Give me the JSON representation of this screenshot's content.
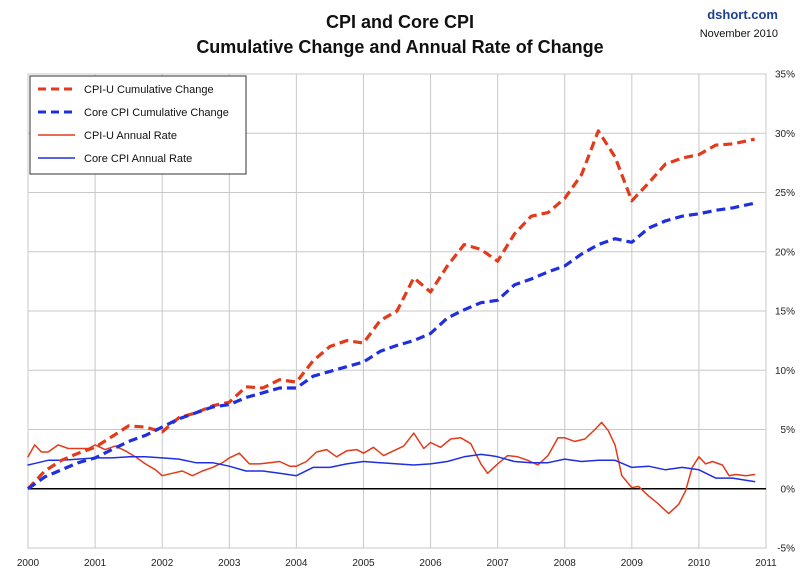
{
  "header": {
    "title_line1": "CPI and Core CPI",
    "title_line2": "Cumulative Change and Annual Rate of Change",
    "source": "dshort.com",
    "date": "November 2010"
  },
  "colors": {
    "cpi_red": "#e23a1a",
    "core_blue": "#1f2fe0",
    "zero_line": "#000000",
    "grid": "#c8c8c8",
    "frame": "#808080"
  },
  "chart_data": {
    "type": "line",
    "title": "CPI and Core CPI — Cumulative Change and Annual Rate of Change",
    "x_ticks": [
      "2000",
      "2001",
      "2002",
      "2003",
      "2004",
      "2005",
      "2006",
      "2007",
      "2008",
      "2009",
      "2010",
      "2011"
    ],
    "y_ticks": [
      "35%",
      "30%",
      "25%",
      "20%",
      "15%",
      "10%",
      "5%",
      "0%",
      "-5%"
    ],
    "xlim": [
      2000,
      2011
    ],
    "ylim": [
      -5,
      35
    ],
    "grid": true,
    "legend_position": "top-left",
    "series": [
      {
        "name": "CPI-U Cumulative Change",
        "style": "dashed",
        "color": "#e23a1a",
        "points": [
          [
            2000.0,
            0.0
          ],
          [
            2000.25,
            1.5
          ],
          [
            2000.5,
            2.4
          ],
          [
            2000.75,
            3.0
          ],
          [
            2001.0,
            3.5
          ],
          [
            2001.25,
            4.4
          ],
          [
            2001.5,
            5.3
          ],
          [
            2001.75,
            5.2
          ],
          [
            2002.0,
            4.8
          ],
          [
            2002.25,
            6.0
          ],
          [
            2002.5,
            6.4
          ],
          [
            2002.75,
            7.0
          ],
          [
            2003.0,
            7.3
          ],
          [
            2003.25,
            8.6
          ],
          [
            2003.5,
            8.5
          ],
          [
            2003.75,
            9.2
          ],
          [
            2004.0,
            9.0
          ],
          [
            2004.25,
            10.8
          ],
          [
            2004.5,
            12.0
          ],
          [
            2004.75,
            12.5
          ],
          [
            2005.0,
            12.3
          ],
          [
            2005.25,
            14.2
          ],
          [
            2005.5,
            15.0
          ],
          [
            2005.75,
            17.8
          ],
          [
            2006.0,
            16.6
          ],
          [
            2006.25,
            18.8
          ],
          [
            2006.5,
            20.6
          ],
          [
            2006.75,
            20.2
          ],
          [
            2007.0,
            19.2
          ],
          [
            2007.25,
            21.5
          ],
          [
            2007.5,
            23.0
          ],
          [
            2007.75,
            23.3
          ],
          [
            2008.0,
            24.5
          ],
          [
            2008.25,
            26.5
          ],
          [
            2008.5,
            30.2
          ],
          [
            2008.75,
            28.0
          ],
          [
            2009.0,
            24.3
          ],
          [
            2009.25,
            25.8
          ],
          [
            2009.5,
            27.4
          ],
          [
            2009.75,
            27.9
          ],
          [
            2010.0,
            28.2
          ],
          [
            2010.25,
            29.0
          ],
          [
            2010.5,
            29.1
          ],
          [
            2010.83,
            29.5
          ]
        ]
      },
      {
        "name": "Core CPI Cumulative Change",
        "style": "dashed",
        "color": "#1f2fe0",
        "points": [
          [
            2000.0,
            0.0
          ],
          [
            2000.25,
            1.0
          ],
          [
            2000.5,
            1.6
          ],
          [
            2000.75,
            2.2
          ],
          [
            2001.0,
            2.6
          ],
          [
            2001.25,
            3.3
          ],
          [
            2001.5,
            4.0
          ],
          [
            2001.75,
            4.5
          ],
          [
            2002.0,
            5.2
          ],
          [
            2002.25,
            5.9
          ],
          [
            2002.5,
            6.4
          ],
          [
            2002.75,
            6.9
          ],
          [
            2003.0,
            7.1
          ],
          [
            2003.25,
            7.7
          ],
          [
            2003.5,
            8.1
          ],
          [
            2003.75,
            8.5
          ],
          [
            2004.0,
            8.5
          ],
          [
            2004.25,
            9.5
          ],
          [
            2004.5,
            9.9
          ],
          [
            2004.75,
            10.3
          ],
          [
            2005.0,
            10.7
          ],
          [
            2005.25,
            11.6
          ],
          [
            2005.5,
            12.1
          ],
          [
            2005.75,
            12.5
          ],
          [
            2006.0,
            13.1
          ],
          [
            2006.25,
            14.4
          ],
          [
            2006.5,
            15.1
          ],
          [
            2006.75,
            15.7
          ],
          [
            2007.0,
            15.9
          ],
          [
            2007.25,
            17.2
          ],
          [
            2007.5,
            17.7
          ],
          [
            2007.75,
            18.3
          ],
          [
            2008.0,
            18.8
          ],
          [
            2008.25,
            19.8
          ],
          [
            2008.5,
            20.6
          ],
          [
            2008.75,
            21.1
          ],
          [
            2009.0,
            20.8
          ],
          [
            2009.25,
            22.0
          ],
          [
            2009.5,
            22.6
          ],
          [
            2009.75,
            23.0
          ],
          [
            2010.0,
            23.2
          ],
          [
            2010.25,
            23.5
          ],
          [
            2010.5,
            23.7
          ],
          [
            2010.83,
            24.1
          ]
        ]
      },
      {
        "name": "CPI-U Annual Rate",
        "style": "solid",
        "color": "#e23a1a",
        "points": [
          [
            2000.0,
            2.7
          ],
          [
            2000.1,
            3.7
          ],
          [
            2000.2,
            3.1
          ],
          [
            2000.3,
            3.1
          ],
          [
            2000.45,
            3.7
          ],
          [
            2000.6,
            3.4
          ],
          [
            2000.75,
            3.4
          ],
          [
            2000.9,
            3.4
          ],
          [
            2001.0,
            3.7
          ],
          [
            2001.15,
            3.3
          ],
          [
            2001.3,
            3.6
          ],
          [
            2001.45,
            3.2
          ],
          [
            2001.6,
            2.7
          ],
          [
            2001.75,
            2.1
          ],
          [
            2001.9,
            1.6
          ],
          [
            2002.0,
            1.1
          ],
          [
            2002.15,
            1.3
          ],
          [
            2002.3,
            1.5
          ],
          [
            2002.45,
            1.1
          ],
          [
            2002.6,
            1.5
          ],
          [
            2002.75,
            1.8
          ],
          [
            2002.9,
            2.2
          ],
          [
            2003.0,
            2.6
          ],
          [
            2003.15,
            3.0
          ],
          [
            2003.3,
            2.1
          ],
          [
            2003.45,
            2.1
          ],
          [
            2003.6,
            2.2
          ],
          [
            2003.75,
            2.3
          ],
          [
            2003.9,
            1.9
          ],
          [
            2004.0,
            1.9
          ],
          [
            2004.15,
            2.3
          ],
          [
            2004.3,
            3.1
          ],
          [
            2004.45,
            3.3
          ],
          [
            2004.6,
            2.7
          ],
          [
            2004.75,
            3.2
          ],
          [
            2004.9,
            3.3
          ],
          [
            2005.0,
            3.0
          ],
          [
            2005.15,
            3.5
          ],
          [
            2005.3,
            2.8
          ],
          [
            2005.45,
            3.2
          ],
          [
            2005.6,
            3.6
          ],
          [
            2005.75,
            4.7
          ],
          [
            2005.9,
            3.4
          ],
          [
            2006.0,
            3.9
          ],
          [
            2006.15,
            3.5
          ],
          [
            2006.3,
            4.2
          ],
          [
            2006.45,
            4.3
          ],
          [
            2006.6,
            3.8
          ],
          [
            2006.75,
            2.1
          ],
          [
            2006.85,
            1.3
          ],
          [
            2007.0,
            2.1
          ],
          [
            2007.15,
            2.8
          ],
          [
            2007.3,
            2.7
          ],
          [
            2007.45,
            2.4
          ],
          [
            2007.6,
            2.0
          ],
          [
            2007.75,
            2.8
          ],
          [
            2007.9,
            4.3
          ],
          [
            2008.0,
            4.3
          ],
          [
            2008.15,
            4.0
          ],
          [
            2008.3,
            4.2
          ],
          [
            2008.45,
            5.0
          ],
          [
            2008.55,
            5.6
          ],
          [
            2008.65,
            4.9
          ],
          [
            2008.75,
            3.7
          ],
          [
            2008.85,
            1.1
          ],
          [
            2009.0,
            0.1
          ],
          [
            2009.1,
            0.2
          ],
          [
            2009.25,
            -0.6
          ],
          [
            2009.4,
            -1.3
          ],
          [
            2009.55,
            -2.1
          ],
          [
            2009.7,
            -1.3
          ],
          [
            2009.8,
            -0.2
          ],
          [
            2009.9,
            1.8
          ],
          [
            2010.0,
            2.7
          ],
          [
            2010.1,
            2.1
          ],
          [
            2010.2,
            2.3
          ],
          [
            2010.35,
            2.0
          ],
          [
            2010.45,
            1.1
          ],
          [
            2010.55,
            1.2
          ],
          [
            2010.7,
            1.1
          ],
          [
            2010.83,
            1.2
          ]
        ]
      },
      {
        "name": "Core CPI Annual Rate",
        "style": "solid",
        "color": "#1f2fe0",
        "points": [
          [
            2000.0,
            2.0
          ],
          [
            2000.15,
            2.2
          ],
          [
            2000.3,
            2.4
          ],
          [
            2000.5,
            2.4
          ],
          [
            2000.75,
            2.5
          ],
          [
            2001.0,
            2.6
          ],
          [
            2001.25,
            2.6
          ],
          [
            2001.5,
            2.7
          ],
          [
            2001.75,
            2.7
          ],
          [
            2002.0,
            2.6
          ],
          [
            2002.25,
            2.5
          ],
          [
            2002.5,
            2.2
          ],
          [
            2002.75,
            2.2
          ],
          [
            2003.0,
            1.9
          ],
          [
            2003.25,
            1.5
          ],
          [
            2003.5,
            1.5
          ],
          [
            2003.75,
            1.3
          ],
          [
            2004.0,
            1.1
          ],
          [
            2004.25,
            1.8
          ],
          [
            2004.5,
            1.8
          ],
          [
            2004.75,
            2.1
          ],
          [
            2005.0,
            2.3
          ],
          [
            2005.25,
            2.2
          ],
          [
            2005.5,
            2.1
          ],
          [
            2005.75,
            2.0
          ],
          [
            2006.0,
            2.1
          ],
          [
            2006.25,
            2.3
          ],
          [
            2006.5,
            2.7
          ],
          [
            2006.75,
            2.9
          ],
          [
            2006.9,
            2.8
          ],
          [
            2007.0,
            2.7
          ],
          [
            2007.25,
            2.3
          ],
          [
            2007.5,
            2.2
          ],
          [
            2007.75,
            2.2
          ],
          [
            2008.0,
            2.5
          ],
          [
            2008.25,
            2.3
          ],
          [
            2008.5,
            2.4
          ],
          [
            2008.75,
            2.4
          ],
          [
            2009.0,
            1.8
          ],
          [
            2009.25,
            1.9
          ],
          [
            2009.5,
            1.6
          ],
          [
            2009.75,
            1.8
          ],
          [
            2010.0,
            1.6
          ],
          [
            2010.25,
            0.9
          ],
          [
            2010.5,
            0.9
          ],
          [
            2010.83,
            0.6
          ]
        ]
      }
    ]
  }
}
